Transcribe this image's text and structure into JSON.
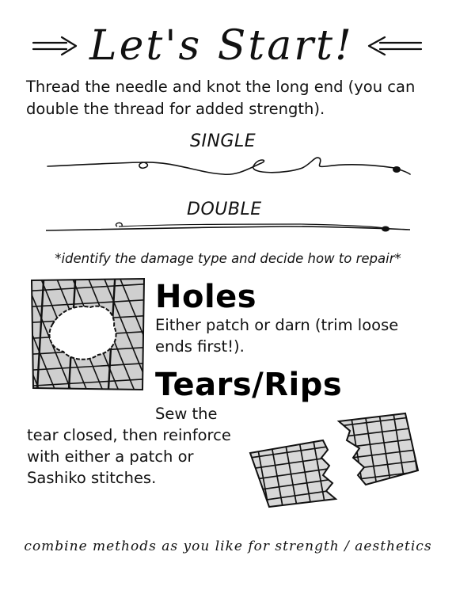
{
  "title": "Let's Start!",
  "intro": "Thread the needle and knot the long end (you can double the thread for added strength).",
  "threads": {
    "single_label": "SINGLE",
    "double_label": "DOUBLE"
  },
  "note": "*identify the damage type and decide how to repair*",
  "holes": {
    "heading": "Holes",
    "description": "Either patch or darn (trim loose ends first!)."
  },
  "tears": {
    "heading": "Tears/Rips",
    "description_line1": "Sew the",
    "description_rest": "tear closed, then reinforce with either a patch or Sashiko stitches."
  },
  "footer": "combine methods as you like for strength / aesthetics",
  "icons": [
    "right-arrow-icon",
    "left-arrow-icon",
    "hole-fabric-illustration",
    "torn-fabric-illustration"
  ]
}
